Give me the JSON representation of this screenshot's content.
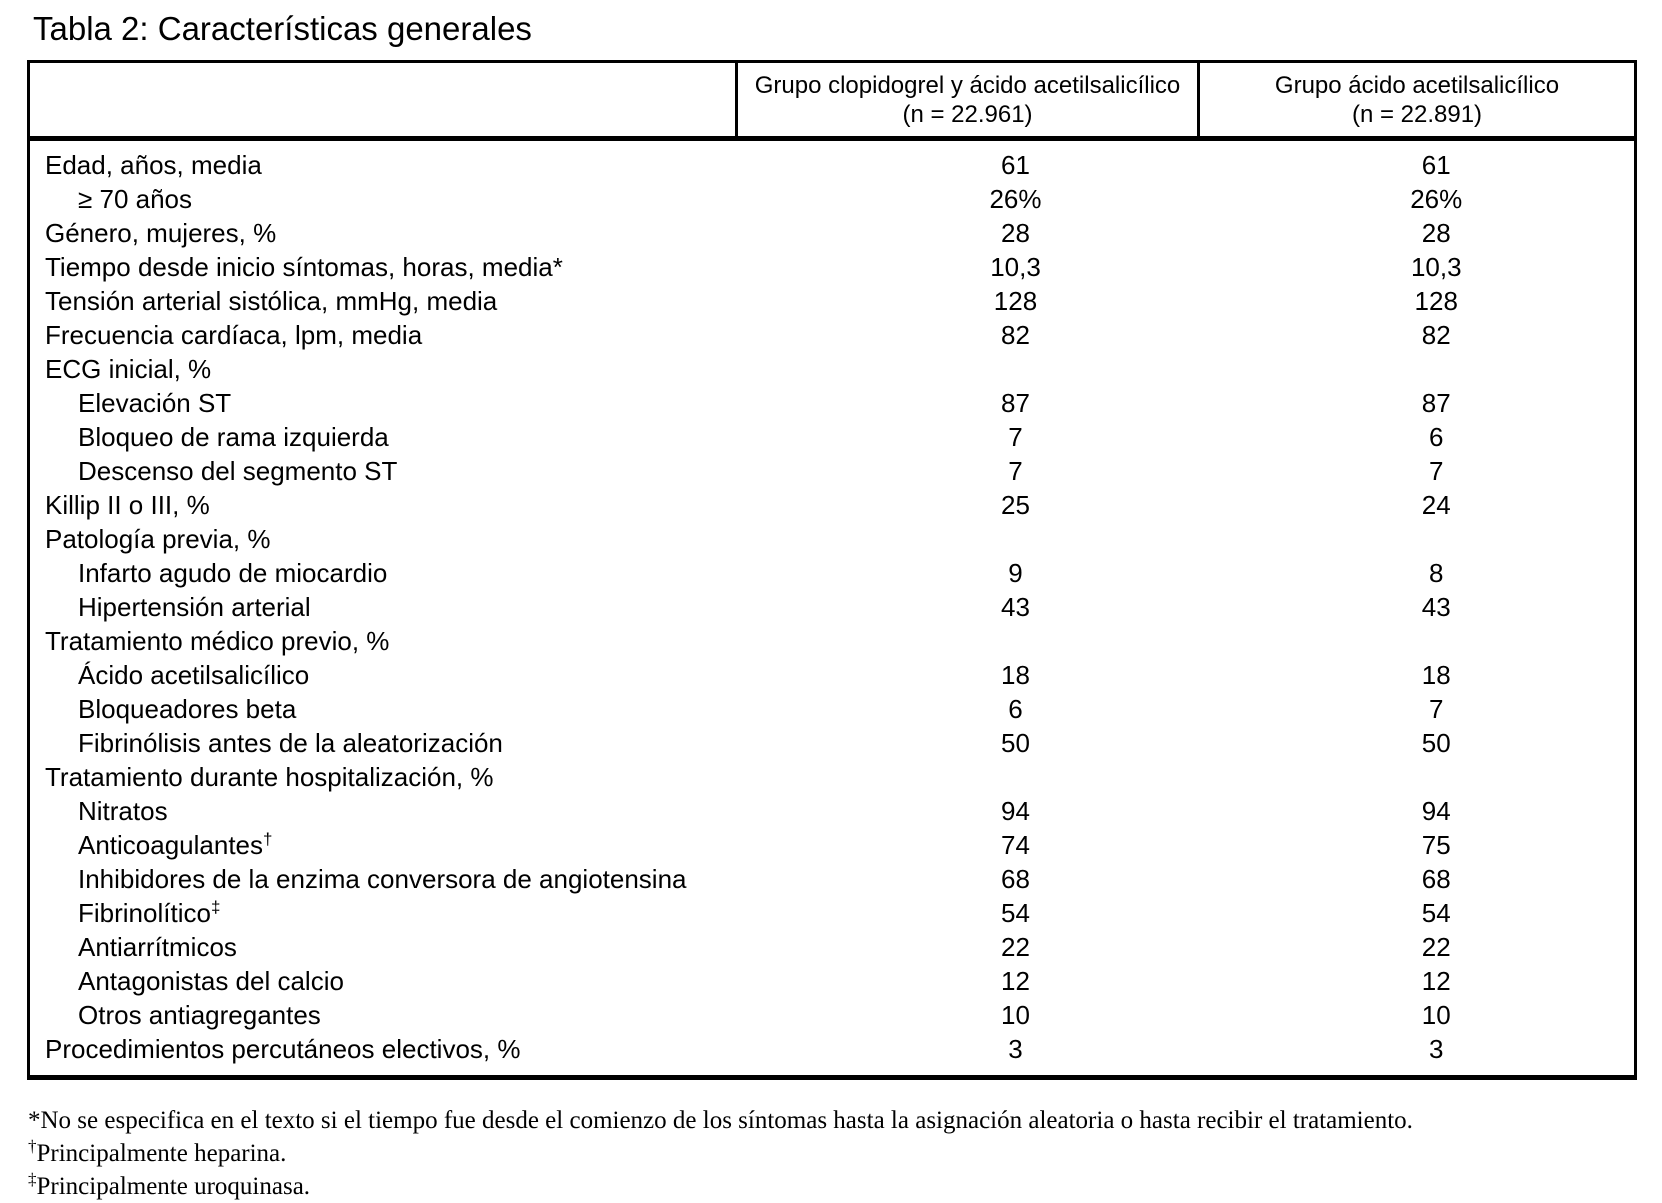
{
  "title": "Tabla 2: Características generales",
  "table": {
    "columns": [
      {
        "line1": "Grupo clopidogrel y ácido acetilsalicílico",
        "line2": "(n = 22.961)"
      },
      {
        "line1": "Grupo ácido acetilsalicílico",
        "line2": "(n = 22.891)"
      }
    ],
    "rows": [
      {
        "label": "Edad, años, media",
        "indent": 0,
        "sup": "",
        "v1": "61",
        "v2": "61"
      },
      {
        "label": "≥ 70 años",
        "indent": 1,
        "sup": "",
        "v1": "26%",
        "v2": "26%"
      },
      {
        "label": "Género, mujeres, %",
        "indent": 0,
        "sup": "",
        "v1": "28",
        "v2": "28"
      },
      {
        "label": "Tiempo desde inicio síntomas, horas, media*",
        "indent": 0,
        "sup": "",
        "v1": "10,3",
        "v2": "10,3"
      },
      {
        "label": "Tensión arterial sistólica, mmHg, media",
        "indent": 0,
        "sup": "",
        "v1": "128",
        "v2": "128"
      },
      {
        "label": "Frecuencia cardíaca, lpm, media",
        "indent": 0,
        "sup": "",
        "v1": "82",
        "v2": "82"
      },
      {
        "label": "ECG inicial, %",
        "indent": 0,
        "sup": "",
        "v1": "",
        "v2": ""
      },
      {
        "label": "Elevación ST",
        "indent": 1,
        "sup": "",
        "v1": "87",
        "v2": "87"
      },
      {
        "label": "Bloqueo de rama izquierda",
        "indent": 1,
        "sup": "",
        "v1": "7",
        "v2": "6"
      },
      {
        "label": "Descenso del segmento ST",
        "indent": 1,
        "sup": "",
        "v1": "7",
        "v2": "7"
      },
      {
        "label": "Killip II o III, %",
        "indent": 0,
        "sup": "",
        "v1": "25",
        "v2": "24"
      },
      {
        "label": "Patología previa, %",
        "indent": 0,
        "sup": "",
        "v1": "",
        "v2": ""
      },
      {
        "label": "Infarto agudo de miocardio",
        "indent": 1,
        "sup": "",
        "v1": "9",
        "v2": "8"
      },
      {
        "label": "Hipertensión arterial",
        "indent": 1,
        "sup": "",
        "v1": "43",
        "v2": "43"
      },
      {
        "label": "Tratamiento médico previo, %",
        "indent": 0,
        "sup": "",
        "v1": "",
        "v2": ""
      },
      {
        "label": "Ácido acetilsalicílico",
        "indent": 1,
        "sup": "",
        "v1": "18",
        "v2": "18"
      },
      {
        "label": "Bloqueadores beta",
        "indent": 1,
        "sup": "",
        "v1": "6",
        "v2": "7"
      },
      {
        "label": "Fibrinólisis antes de la aleatorización",
        "indent": 1,
        "sup": "",
        "v1": "50",
        "v2": "50"
      },
      {
        "label": "Tratamiento durante hospitalización, %",
        "indent": 0,
        "sup": "",
        "v1": "",
        "v2": ""
      },
      {
        "label": "Nitratos",
        "indent": 1,
        "sup": "",
        "v1": "94",
        "v2": "94"
      },
      {
        "label": "Anticoagulantes",
        "indent": 1,
        "sup": "†",
        "v1": "74",
        "v2": "75"
      },
      {
        "label": "Inhibidores de la enzima conversora de angiotensina",
        "indent": 1,
        "sup": "",
        "v1": "68",
        "v2": "68"
      },
      {
        "label": "Fibrinolítico",
        "indent": 1,
        "sup": "‡",
        "v1": "54",
        "v2": "54"
      },
      {
        "label": "Antiarrítmicos",
        "indent": 1,
        "sup": "",
        "v1": "22",
        "v2": "22"
      },
      {
        "label": "Antagonistas del calcio",
        "indent": 1,
        "sup": "",
        "v1": "12",
        "v2": "12"
      },
      {
        "label": "Otros antiagregantes",
        "indent": 1,
        "sup": "",
        "v1": "10",
        "v2": "10"
      },
      {
        "label": "Procedimientos percutáneos electivos, %",
        "indent": 0,
        "sup": "",
        "v1": "3",
        "v2": "3"
      }
    ]
  },
  "footnotes": [
    {
      "marker": "*",
      "text": "No se especifica en el texto si el tiempo fue desde el comienzo de los síntomas hasta la asignación aleatoria o hasta recibir el tratamiento."
    },
    {
      "marker": "†",
      "text": "Principalmente heparina."
    },
    {
      "marker": "‡",
      "text": "Principalmente uroquinasa."
    }
  ]
}
